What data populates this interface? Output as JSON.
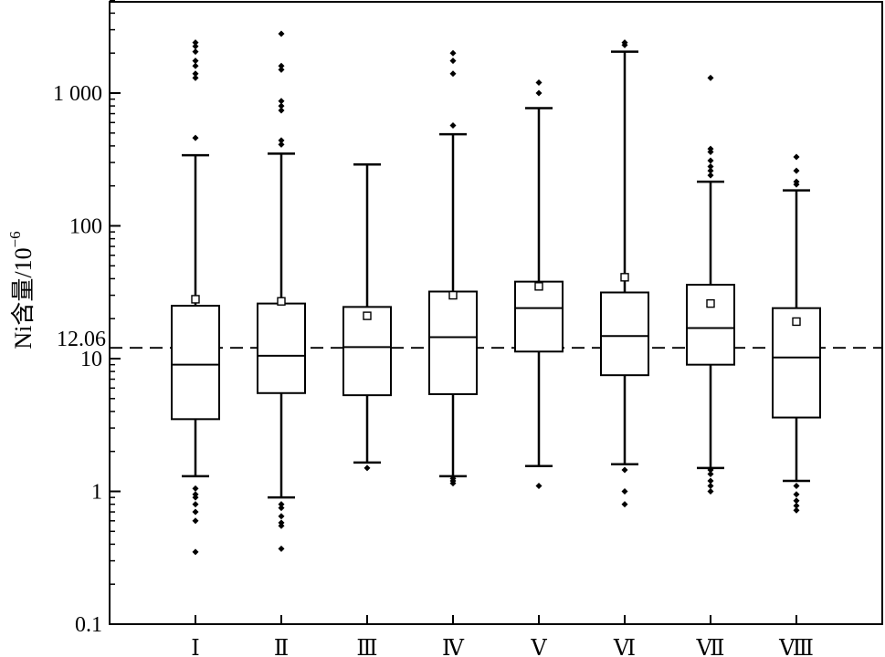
{
  "chart_data": {
    "type": "box",
    "title": "",
    "xlabel": "",
    "ylabel": "Ni含量/10",
    "ylabel_exponent": "−6",
    "yscale": "log",
    "ylim": [
      0.1,
      6000
    ],
    "yticks": [
      {
        "value": 0.1,
        "label": "0.1"
      },
      {
        "value": 1,
        "label": "1"
      },
      {
        "value": 10,
        "label": "10"
      },
      {
        "value": 100,
        "label": "100"
      },
      {
        "value": 1000,
        "label": "1 000"
      }
    ],
    "reference_line": {
      "value": 12.06,
      "label": "12.06",
      "style": "dashed"
    },
    "categories": [
      "Ⅰ",
      "Ⅱ",
      "Ⅲ",
      "Ⅳ",
      "Ⅴ",
      "Ⅵ",
      "Ⅶ",
      "Ⅷ"
    ],
    "boxes": [
      {
        "category": "Ⅰ",
        "whisker_low": 1.3,
        "q1": 3.5,
        "median": 9,
        "q3": 25,
        "whisker_high": 340,
        "mean": 28,
        "outliers": [
          0.35,
          0.6,
          0.7,
          0.8,
          0.9,
          0.95,
          1.05,
          460,
          1300,
          1400,
          1600,
          1750,
          2050,
          2250,
          2400
        ]
      },
      {
        "category": "Ⅱ",
        "whisker_low": 0.9,
        "q1": 5.5,
        "median": 10.5,
        "q3": 26,
        "whisker_high": 350,
        "mean": 27,
        "outliers": [
          0.37,
          0.55,
          0.58,
          0.65,
          0.75,
          0.8,
          410,
          440,
          740,
          800,
          870,
          1500,
          1600,
          2800
        ]
      },
      {
        "category": "Ⅲ",
        "whisker_low": 1.65,
        "q1": 5.3,
        "median": 12.2,
        "q3": 24.5,
        "whisker_high": 290,
        "mean": 21,
        "outliers": [
          1.5
        ]
      },
      {
        "category": "Ⅳ",
        "whisker_low": 1.3,
        "q1": 5.4,
        "median": 14.5,
        "q3": 32,
        "whisker_high": 490,
        "mean": 30,
        "outliers": [
          1.15,
          1.2,
          1.25,
          570,
          1400,
          1750,
          2000
        ]
      },
      {
        "category": "Ⅴ",
        "whisker_low": 1.55,
        "q1": 11.3,
        "median": 24,
        "q3": 38,
        "whisker_high": 770,
        "mean": 35,
        "outliers": [
          1.1,
          1000,
          1200
        ]
      },
      {
        "category": "Ⅵ",
        "whisker_low": 1.6,
        "q1": 7.5,
        "median": 14.8,
        "q3": 31.5,
        "whisker_high": 2050,
        "mean": 41,
        "outliers": [
          0.8,
          1.0,
          1.45,
          2300,
          2400
        ]
      },
      {
        "category": "Ⅶ",
        "whisker_low": 1.5,
        "q1": 9,
        "median": 17,
        "q3": 36,
        "whisker_high": 215,
        "mean": 26,
        "outliers": [
          1.0,
          1.1,
          1.2,
          1.35,
          1.45,
          240,
          260,
          280,
          310,
          360,
          380,
          1300
        ]
      },
      {
        "category": "Ⅷ",
        "whisker_low": 1.2,
        "q1": 3.6,
        "median": 10.2,
        "q3": 24,
        "whisker_high": 185,
        "mean": 19,
        "outliers": [
          0.72,
          0.78,
          0.85,
          0.95,
          1.1,
          205,
          215,
          260,
          330
        ]
      }
    ]
  }
}
